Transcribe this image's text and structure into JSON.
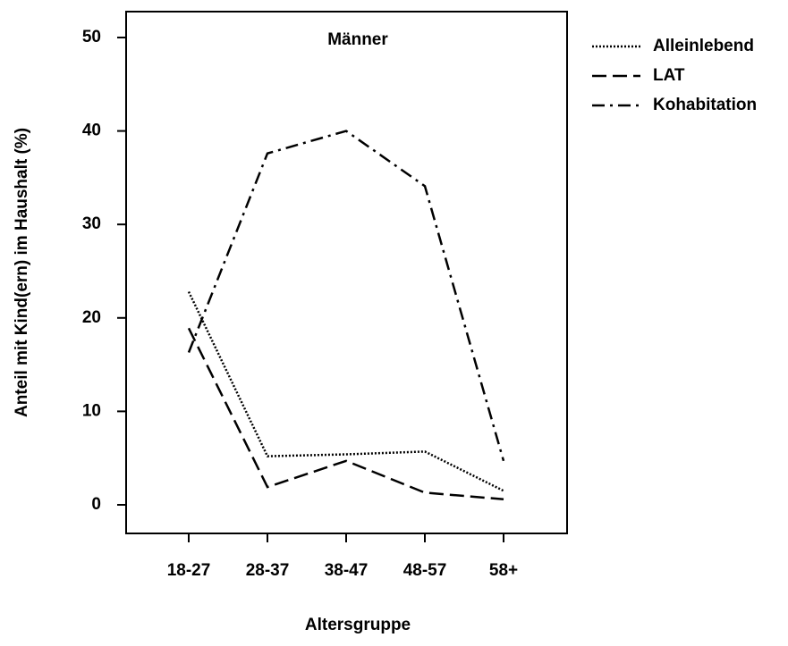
{
  "chart_data": {
    "type": "line",
    "title": "Männer",
    "x_label": "Altersgruppe",
    "y_label": "Anteil mit Kind(ern) im Haushalt  (%)",
    "categories": [
      "18-27",
      "28-37",
      "38-47",
      "48-57",
      "58+"
    ],
    "series": [
      {
        "name": "Alleinlebend",
        "color": "#000000",
        "dash": "dotted",
        "values": [
          22.8,
          5.2,
          5.4,
          5.7,
          1.5
        ]
      },
      {
        "name": "LAT",
        "color": "#000000",
        "dash": "dashed",
        "values": [
          18.9,
          1.9,
          4.7,
          1.3,
          0.6
        ]
      },
      {
        "name": "Kohabitation",
        "color": "#000000",
        "dash": "dashdot",
        "values": [
          16.3,
          37.6,
          40.0,
          34.1,
          4.7
        ]
      }
    ],
    "ylim": [
      -3.06,
      52.77
    ],
    "yticks": [
      0,
      10,
      20,
      30,
      40,
      50
    ],
    "grid": false,
    "legend": "outside-right"
  }
}
